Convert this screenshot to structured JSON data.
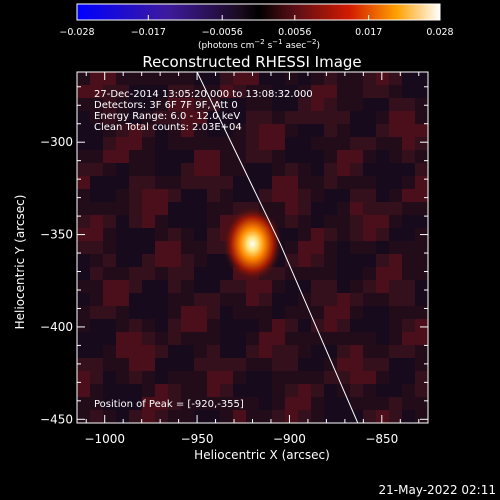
{
  "chart_data": {
    "type": "heatmap",
    "title": "Reconstructed RHESSI Image",
    "xlabel": "Heliocentric X (arcsec)",
    "ylabel": "Heliocentric Y (arcsec)",
    "xlim": [
      -1015,
      -825
    ],
    "ylim": [
      -452,
      -262
    ],
    "xticks": [
      -1000,
      -950,
      -900,
      -850
    ],
    "yticks": [
      -300,
      -350,
      -400,
      -450
    ],
    "xtick_labels": [
      "−1000",
      "−950",
      "−900",
      "−850"
    ],
    "ytick_labels": [
      "−300",
      "−350",
      "−400",
      "−450"
    ],
    "colorbar": {
      "min": -0.028,
      "max": 0.028,
      "tick_values": [
        -0.028,
        -0.017,
        -0.0056,
        0.0056,
        0.017,
        0.028
      ],
      "tick_labels": [
        "−0.028",
        "−0.017",
        "−0.0056",
        "0.0056",
        "0.017",
        "0.028"
      ],
      "unit_parts": [
        "(photons cm",
        "−2",
        " s",
        "−1",
        " asec",
        "−2",
        ")"
      ]
    },
    "source_peak": {
      "x": -920,
      "y": -355,
      "value": 0.028
    },
    "limb_line": [
      [
        -950,
        -262
      ],
      [
        -905,
        -355
      ],
      [
        -863,
        -452
      ]
    ],
    "annotations": [
      "27-Dec-2014 13:05:20.000 to 13:08:32.000",
      "Detectors: 3F 6F 7F 9F, Att 0",
      "Energy Range: 6.0 - 12.0 keV",
      "Clean     Total counts: 2.03E+04"
    ],
    "peak_label": "Position of Peak = [-920,-355]"
  },
  "footer": {
    "timestamp": "21-May-2022 02:11"
  }
}
